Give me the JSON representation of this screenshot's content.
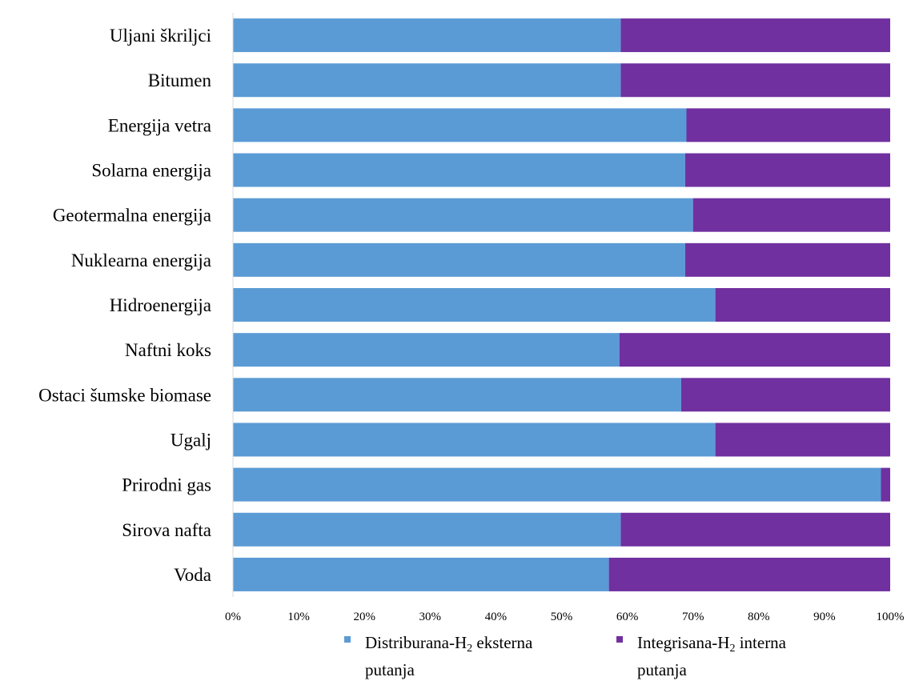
{
  "chart_data": {
    "type": "bar",
    "orientation": "horizontal",
    "stacking": "percent",
    "title": "",
    "xlabel": "",
    "ylabel": "",
    "categories": [
      "Uljani škriljci",
      "Bitumen",
      "Energija vetra",
      "Solarna energija",
      "Geotermalna energija",
      "Nuklearna energija",
      "Hidroenergija",
      "Naftni koks",
      "Ostaci šumske biomase",
      "Ugalj",
      "Prirodni gas",
      "Sirova nafta",
      "Voda"
    ],
    "series": [
      {
        "name": "Distriburana-H2 eksterna putanja",
        "color": "#5B9BD5",
        "values": [
          59,
          59,
          69,
          68.8,
          70,
          68.8,
          73.4,
          58.8,
          68.2,
          73.4,
          98.6,
          59,
          57.2
        ]
      },
      {
        "name": "Integrisana-H2 interna putanja",
        "color": "#7030A0",
        "values": [
          41,
          41,
          31,
          31.2,
          30,
          31.2,
          26.6,
          41.2,
          31.8,
          26.6,
          1.4,
          41,
          42.8
        ]
      }
    ],
    "xlim": [
      0,
      100
    ],
    "xticks": [
      "0%",
      "10%",
      "20%",
      "30%",
      "40%",
      "50%",
      "60%",
      "70%",
      "80%",
      "90%",
      "100%"
    ],
    "grid": false,
    "legend_position": "bottom"
  },
  "legend": {
    "item1": {
      "prefix": "Distriburana-H",
      "sub": "2",
      "suffix": " eksterna",
      "line2": "putanja"
    },
    "item2": {
      "prefix": "Integrisana-H",
      "sub": "2",
      "suffix": "  interna",
      "line2": "putanja"
    }
  }
}
